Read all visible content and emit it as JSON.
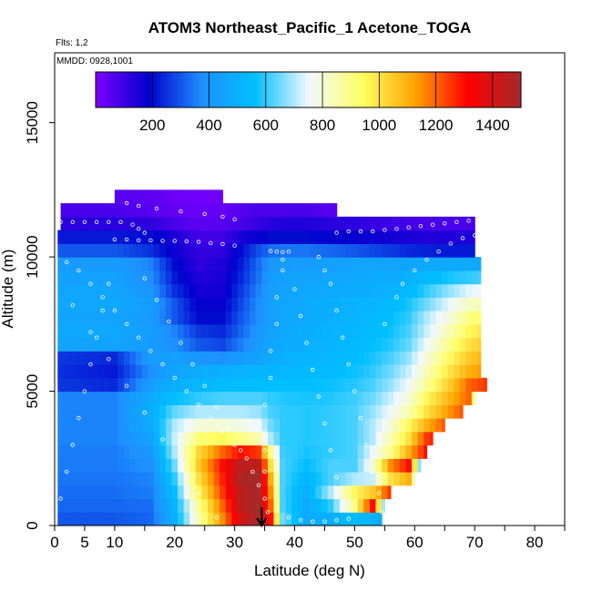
{
  "chart_data": {
    "type": "heatmap",
    "title": "ATOM3 Northeast_Pacific_1 Acetone_TOGA",
    "annotations": {
      "flights": "Flts: 1,2",
      "dates": "MMDD: 0928,1001"
    },
    "xlabel": "Latitude (deg N)",
    "ylabel": "Altitude (m)",
    "xlim": [
      0,
      85
    ],
    "ylim": [
      0,
      17600
    ],
    "x_ticks": [
      0,
      5,
      10,
      20,
      30,
      40,
      50,
      60,
      70,
      80
    ],
    "x_minor_ticks": [
      15,
      25,
      35,
      45,
      55,
      65,
      75,
      85
    ],
    "y_ticks": [
      0,
      5000,
      10000,
      15000
    ],
    "colorbar": {
      "min": 0,
      "max": 1500,
      "ticks": [
        200,
        400,
        600,
        800,
        1000,
        1200,
        1400
      ],
      "colors": [
        "#7f00ff",
        "#0000cd",
        "#1e90ff",
        "#00bfff",
        "#f0f8ff",
        "#ffff66",
        "#ffa500",
        "#ff0000",
        "#a52a2a"
      ]
    },
    "marker": {
      "latitude": 34.5,
      "label": "arrow"
    },
    "altitude_bands_m": [
      0,
      500,
      1000,
      1500,
      2000,
      2500,
      3000,
      3500,
      4000,
      4500,
      5000,
      5500,
      6000,
      6500,
      7000,
      7500,
      8000,
      8500,
      9000,
      9500,
      10000,
      10500,
      11000,
      11500,
      12000
    ],
    "lat_extent_per_band": [
      [
        0.5,
        54.5
      ],
      [
        0.5,
        55
      ],
      [
        0.5,
        56
      ],
      [
        0.5,
        60
      ],
      [
        0.5,
        61
      ],
      [
        0.5,
        62
      ],
      [
        0.5,
        63
      ],
      [
        0.5,
        65
      ],
      [
        0.5,
        68
      ],
      [
        0.5,
        70
      ],
      [
        0.5,
        72
      ],
      [
        0.5,
        71
      ],
      [
        0.5,
        71
      ],
      [
        0.5,
        71
      ],
      [
        0.5,
        71
      ],
      [
        0.5,
        71
      ],
      [
        0.5,
        71
      ],
      [
        0.5,
        71
      ],
      [
        0.5,
        71
      ],
      [
        0.5,
        71
      ],
      [
        0.5,
        70
      ],
      [
        0.5,
        70
      ],
      [
        1,
        70
      ],
      [
        1,
        47
      ],
      [
        10,
        28
      ]
    ],
    "contour_points": {
      "lat": [
        0,
        10,
        16,
        20,
        24,
        28,
        31,
        34,
        36,
        38,
        42,
        46,
        50,
        53,
        56,
        59,
        62,
        66,
        69,
        72
      ],
      "values": [
        [
          300,
          300,
          320,
          500,
          850,
          1150,
          1400,
          1500,
          1300,
          650,
          480,
          500,
          550,
          520,
          420,
          380,
          360,
          360,
          360,
          360
        ],
        [
          320,
          320,
          330,
          520,
          880,
          1200,
          1450,
          1500,
          1200,
          620,
          480,
          600,
          900,
          1300,
          380,
          360,
          360,
          360,
          360,
          360
        ],
        [
          330,
          330,
          350,
          560,
          950,
          1250,
          1450,
          1500,
          1150,
          620,
          500,
          700,
          950,
          1050,
          1250,
          500,
          360,
          360,
          360,
          360
        ],
        [
          340,
          340,
          360,
          600,
          1000,
          1280,
          1480,
          1500,
          1100,
          620,
          530,
          620,
          700,
          720,
          1000,
          1100,
          360,
          360,
          360,
          360
        ],
        [
          350,
          350,
          380,
          650,
          1050,
          1300,
          1450,
          1450,
          1000,
          620,
          560,
          620,
          620,
          800,
          1150,
          1300,
          360,
          360,
          360,
          360
        ],
        [
          350,
          350,
          400,
          700,
          1020,
          1200,
          1300,
          1250,
          900,
          610,
          580,
          600,
          620,
          750,
          900,
          1100,
          1300,
          360,
          360,
          360
        ],
        [
          360,
          360,
          450,
          720,
          920,
          950,
          900,
          850,
          700,
          600,
          590,
          600,
          620,
          700,
          850,
          1000,
          1250,
          1350,
          360,
          360
        ],
        [
          360,
          360,
          480,
          700,
          800,
          800,
          780,
          750,
          650,
          600,
          590,
          600,
          620,
          700,
          800,
          950,
          1100,
          1250,
          360,
          360
        ],
        [
          360,
          360,
          500,
          640,
          700,
          700,
          700,
          680,
          620,
          600,
          590,
          600,
          620,
          680,
          760,
          850,
          1000,
          1150,
          1250,
          360
        ],
        [
          360,
          360,
          480,
          560,
          600,
          620,
          620,
          620,
          600,
          590,
          580,
          590,
          610,
          650,
          720,
          800,
          950,
          1100,
          1200,
          360
        ],
        [
          260,
          240,
          430,
          500,
          530,
          550,
          560,
          560,
          560,
          560,
          560,
          570,
          590,
          620,
          680,
          760,
          880,
          1050,
          1200,
          1250
        ],
        [
          250,
          220,
          380,
          460,
          480,
          500,
          510,
          520,
          520,
          530,
          540,
          550,
          570,
          600,
          650,
          720,
          840,
          1000,
          1100,
          1150
        ],
        [
          260,
          240,
          420,
          440,
          400,
          380,
          420,
          450,
          480,
          500,
          520,
          530,
          550,
          580,
          620,
          680,
          800,
          950,
          1050,
          1100
        ],
        [
          450,
          450,
          420,
          380,
          300,
          280,
          350,
          420,
          460,
          480,
          500,
          520,
          540,
          560,
          590,
          640,
          760,
          900,
          1000,
          1050
        ],
        [
          470,
          470,
          430,
          360,
          260,
          240,
          320,
          400,
          450,
          470,
          490,
          510,
          530,
          550,
          570,
          620,
          720,
          850,
          950,
          1000
        ],
        [
          450,
          450,
          420,
          300,
          200,
          200,
          300,
          380,
          440,
          460,
          480,
          500,
          520,
          540,
          560,
          600,
          700,
          800,
          900,
          950
        ],
        [
          470,
          470,
          430,
          300,
          180,
          180,
          280,
          380,
          440,
          460,
          480,
          500,
          510,
          520,
          540,
          580,
          650,
          750,
          820,
          850
        ],
        [
          460,
          460,
          400,
          250,
          160,
          160,
          260,
          360,
          430,
          450,
          470,
          480,
          490,
          500,
          510,
          540,
          600,
          680,
          740,
          760
        ],
        [
          440,
          440,
          380,
          220,
          140,
          150,
          240,
          340,
          420,
          440,
          450,
          460,
          470,
          480,
          490,
          510,
          540,
          580,
          600,
          620
        ],
        [
          420,
          420,
          360,
          200,
          120,
          140,
          220,
          330,
          400,
          420,
          430,
          440,
          450,
          450,
          450,
          460,
          470,
          480,
          480,
          480
        ],
        [
          300,
          300,
          250,
          170,
          110,
          120,
          200,
          290,
          330,
          340,
          340,
          320,
          300,
          280,
          260,
          240,
          230,
          220,
          220,
          220
        ],
        [
          220,
          220,
          200,
          150,
          90,
          90,
          150,
          180,
          200,
          200,
          200,
          190,
          180,
          170,
          160,
          150,
          140,
          140,
          140,
          140
        ],
        [
          130,
          130,
          120,
          80,
          50,
          60,
          80,
          110,
          130,
          140,
          140,
          130,
          120,
          110,
          100,
          90,
          80,
          80,
          80,
          80
        ],
        [
          80,
          80,
          60,
          40,
          30,
          40,
          60,
          80,
          80,
          80,
          80,
          60,
          40,
          40,
          40,
          40,
          40,
          40,
          40,
          40
        ],
        [
          60,
          60,
          50,
          30,
          20,
          20,
          20,
          30,
          30,
          30,
          30,
          30,
          30,
          30,
          30,
          30,
          30,
          30,
          30,
          30
        ]
      ]
    },
    "flight_track_points": [
      [
        12,
        12000
      ],
      [
        14,
        11900
      ],
      [
        17,
        11800
      ],
      [
        21,
        11700
      ],
      [
        25,
        11600
      ],
      [
        28,
        11500
      ],
      [
        30,
        11400
      ],
      [
        1,
        11300
      ],
      [
        3,
        11300
      ],
      [
        5,
        11300
      ],
      [
        7,
        11300
      ],
      [
        9,
        11300
      ],
      [
        11,
        11300
      ],
      [
        13,
        11200
      ],
      [
        14,
        11050
      ],
      [
        15,
        10900
      ],
      [
        10,
        10650
      ],
      [
        12,
        10650
      ],
      [
        14,
        10620
      ],
      [
        16,
        10620
      ],
      [
        18,
        10600
      ],
      [
        20,
        10600
      ],
      [
        22,
        10580
      ],
      [
        24,
        10560
      ],
      [
        26,
        10520
      ],
      [
        28,
        10480
      ],
      [
        30,
        10420
      ],
      [
        36,
        10220
      ],
      [
        37,
        10200
      ],
      [
        38,
        10180
      ],
      [
        39,
        10200
      ],
      [
        47,
        10900
      ],
      [
        49,
        10950
      ],
      [
        51,
        10950
      ],
      [
        53,
        10950
      ],
      [
        55,
        11000
      ],
      [
        57,
        11050
      ],
      [
        59,
        11100
      ],
      [
        61,
        11150
      ],
      [
        63,
        11200
      ],
      [
        65,
        11250
      ],
      [
        67,
        11300
      ],
      [
        69,
        11350
      ],
      [
        71,
        11300
      ],
      [
        35,
        2000
      ],
      [
        35,
        2800
      ],
      [
        35,
        3500
      ],
      [
        35,
        4500
      ],
      [
        36,
        5500
      ],
      [
        36,
        6500
      ],
      [
        37,
        7500
      ],
      [
        37,
        8500
      ],
      [
        38,
        9500
      ],
      [
        38,
        9900
      ],
      [
        44,
        10000
      ],
      [
        45,
        9500
      ],
      [
        46,
        9000
      ],
      [
        47,
        8000
      ],
      [
        48,
        7000
      ],
      [
        49,
        6000
      ],
      [
        50,
        5000
      ],
      [
        51,
        4000
      ],
      [
        52,
        3000
      ],
      [
        53,
        2000
      ],
      [
        54,
        1200
      ],
      [
        54.5,
        500
      ],
      [
        55,
        7500
      ],
      [
        57,
        8500
      ],
      [
        58,
        9000
      ],
      [
        60,
        9500
      ],
      [
        62,
        9900
      ],
      [
        64,
        10200
      ],
      [
        66,
        10500
      ],
      [
        68,
        10700
      ],
      [
        70,
        10800
      ],
      [
        2,
        9800
      ],
      [
        4,
        9500
      ],
      [
        6,
        9000
      ],
      [
        8,
        8500
      ],
      [
        10,
        8000
      ],
      [
        12,
        7500
      ],
      [
        14,
        7000
      ],
      [
        16,
        6500
      ],
      [
        18,
        6000
      ],
      [
        20,
        5500
      ],
      [
        22,
        5000
      ],
      [
        24,
        4500
      ],
      [
        26,
        4000
      ],
      [
        28,
        3500
      ],
      [
        30,
        3000
      ],
      [
        32,
        2500
      ],
      [
        33,
        2000
      ],
      [
        34,
        1500
      ],
      [
        35,
        1000
      ],
      [
        35.5,
        500
      ],
      [
        1,
        1000
      ],
      [
        2,
        2000
      ],
      [
        3,
        3000
      ],
      [
        4,
        4000
      ],
      [
        5,
        5000
      ],
      [
        6,
        6000
      ],
      [
        7,
        7000
      ],
      [
        8,
        8000
      ],
      [
        9,
        9000
      ],
      [
        15,
        9200
      ],
      [
        17,
        8400
      ],
      [
        19,
        7600
      ],
      [
        21,
        6800
      ],
      [
        23,
        6000
      ],
      [
        25,
        5200
      ],
      [
        27,
        4400
      ],
      [
        29,
        3600
      ],
      [
        31,
        2800
      ],
      [
        40,
        8800
      ],
      [
        41,
        7800
      ],
      [
        42,
        6800
      ],
      [
        43,
        5800
      ],
      [
        44,
        4800
      ],
      [
        45,
        3800
      ],
      [
        46,
        2800
      ],
      [
        47,
        1800
      ],
      [
        48,
        800
      ],
      [
        3,
        8200
      ],
      [
        6,
        7200
      ],
      [
        9,
        6200
      ],
      [
        12,
        5200
      ],
      [
        15,
        4200
      ],
      [
        18,
        3200
      ],
      [
        21,
        2200
      ],
      [
        24,
        1200
      ],
      [
        27,
        300
      ],
      [
        39,
        300
      ],
      [
        41,
        200
      ],
      [
        43,
        150
      ],
      [
        45,
        150
      ],
      [
        47,
        200
      ],
      [
        49,
        250
      ]
    ]
  }
}
